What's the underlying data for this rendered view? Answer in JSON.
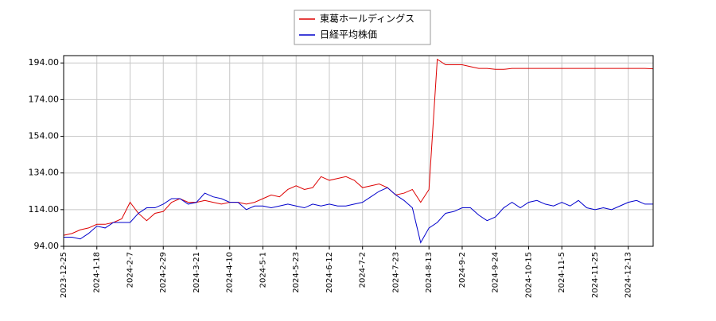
{
  "chart_data": {
    "type": "line",
    "categories": [
      "2023-12-25",
      null,
      null,
      null,
      "2024-1-18",
      null,
      null,
      null,
      "2024-2-7",
      null,
      null,
      null,
      "2024-2-29",
      null,
      null,
      null,
      "2024-3-21",
      null,
      null,
      null,
      "2024-4-10",
      null,
      null,
      null,
      "2024-5-1",
      null,
      null,
      null,
      "2024-5-23",
      null,
      null,
      null,
      "2024-6-12",
      null,
      null,
      null,
      "2024-7-2",
      null,
      null,
      null,
      "2024-7-23",
      null,
      null,
      null,
      "2024-8-13",
      null,
      null,
      null,
      "2024-9-2",
      null,
      null,
      null,
      "2024-9-24",
      null,
      null,
      null,
      "2024-10-15",
      null,
      null,
      null,
      "2024-11-5",
      null,
      null,
      null,
      "2024-11-25",
      null,
      null,
      null,
      "2024-12-13",
      null,
      null,
      null
    ],
    "series": [
      {
        "name": "東葛ホールディングス",
        "color": "#dd0000",
        "values": [
          100,
          101,
          103,
          104,
          106,
          106,
          107,
          109,
          118,
          112,
          108,
          112,
          113,
          118,
          120,
          118,
          118,
          119,
          118,
          117,
          118,
          118,
          117,
          118,
          120,
          122,
          121,
          125,
          127,
          125,
          126,
          132,
          130,
          131,
          132,
          130,
          126,
          127,
          128,
          126,
          122,
          123,
          125,
          118,
          125,
          196,
          193,
          193,
          193,
          192,
          191,
          191,
          190.5,
          190.5,
          191,
          191,
          191,
          191,
          191,
          191,
          191,
          191,
          191,
          191,
          191,
          191,
          191,
          191,
          191,
          191,
          191,
          190.8
        ]
      },
      {
        "name": "日経平均株価",
        "color": "#0000cc",
        "values": [
          99,
          99,
          98,
          101,
          105,
          104,
          107,
          107,
          107,
          112,
          115,
          115,
          117,
          120,
          120,
          117,
          118,
          123,
          121,
          120,
          118,
          118,
          114,
          116,
          116,
          115,
          116,
          117,
          116,
          115,
          117,
          116,
          117,
          116,
          116,
          117,
          118,
          121,
          124,
          126,
          122,
          119,
          115,
          96,
          104,
          107,
          112,
          113,
          115,
          115,
          111,
          108,
          110,
          115,
          118,
          115,
          118,
          119,
          117,
          116,
          118,
          116,
          119,
          115,
          114,
          115,
          114,
          116,
          118,
          119,
          117,
          117
        ]
      }
    ],
    "ylim": [
      94,
      198
    ],
    "yticks": [
      {
        "value": 94,
        "label": "94.00"
      },
      {
        "value": 114,
        "label": "114.00"
      },
      {
        "value": 134,
        "label": "134.00"
      },
      {
        "value": 154,
        "label": "154.00"
      },
      {
        "value": 174,
        "label": "174.00"
      },
      {
        "value": 194,
        "label": "194.00"
      }
    ],
    "grid": true,
    "legend": "top"
  }
}
